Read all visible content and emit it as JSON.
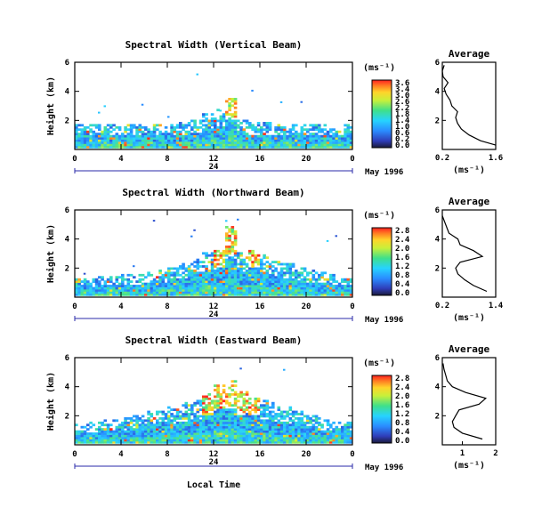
{
  "figure": {
    "xlabel": "Local Time",
    "date_label": "May 1996",
    "midnight_label": "24",
    "units": "(ms⁻¹)",
    "average_title": "Average",
    "average_xlabel": "(ms⁻¹)"
  },
  "chart_data": [
    {
      "type": "heatmap",
      "title": "Spectral Width (Vertical Beam)",
      "xlabel": "Local Time",
      "ylabel": "Height (km)",
      "xlim": [
        0,
        24
      ],
      "xticks": [
        "0",
        "4",
        "8",
        "12",
        "16",
        "20",
        "0"
      ],
      "ylim": [
        0,
        6
      ],
      "yticks": [
        "6",
        "4",
        "2"
      ],
      "colorbar": {
        "label": "(ms⁻¹)",
        "ticks": [
          "3.6",
          "3.4",
          "3.0",
          "2.6",
          "2.2",
          "1.8",
          "1.4",
          "1.0",
          "0.6",
          "0.2",
          "0.0"
        ]
      },
      "layer_top_km": [
        1.6,
        1.6,
        1.7,
        1.6,
        1.6,
        1.7,
        1.7,
        1.6,
        1.7,
        1.8,
        2.0,
        2.4,
        2.7,
        3.5,
        1.9,
        1.8,
        1.8,
        1.7,
        1.7,
        1.6,
        1.6,
        1.6,
        1.6,
        1.6
      ],
      "average": {
        "title": "Average",
        "xlabel": "(ms⁻¹)",
        "xticks": [
          "0.2",
          "1.6"
        ],
        "xlim": [
          0.2,
          1.6
        ],
        "ylim": [
          0,
          6
        ],
        "yticks": [
          "6",
          "4",
          "2"
        ],
        "height_km": [
          0.3,
          0.6,
          1.0,
          1.4,
          1.8,
          2.2,
          2.6,
          3.0,
          3.4,
          3.8,
          4.2,
          4.6,
          5.0,
          5.4,
          5.8
        ],
        "value": [
          1.6,
          1.2,
          0.9,
          0.7,
          0.6,
          0.55,
          0.6,
          0.45,
          0.4,
          0.3,
          0.25,
          0.35,
          0.22,
          0.2,
          0.25
        ]
      }
    },
    {
      "type": "heatmap",
      "title": "Spectral Width (Northward Beam)",
      "xlabel": "Local Time",
      "ylabel": "Height (km)",
      "xlim": [
        0,
        24
      ],
      "xticks": [
        "0",
        "4",
        "8",
        "12",
        "16",
        "20",
        "0"
      ],
      "ylim": [
        0,
        6
      ],
      "yticks": [
        "6",
        "4",
        "2"
      ],
      "colorbar": {
        "label": "(ms⁻¹)",
        "ticks": [
          "2.8",
          "2.4",
          "2.0",
          "1.6",
          "1.2",
          "0.8",
          "0.4",
          "0.0"
        ]
      },
      "layer_top_km": [
        1.2,
        1.2,
        1.4,
        1.4,
        1.5,
        1.5,
        1.6,
        1.8,
        2.0,
        2.2,
        2.6,
        3.0,
        3.3,
        4.8,
        3.0,
        3.2,
        2.8,
        2.4,
        2.2,
        2.0,
        1.8,
        1.6,
        1.5,
        1.4
      ],
      "average": {
        "title": "Average",
        "xlabel": "(ms⁻¹)",
        "xticks": [
          "0.2",
          "1.4"
        ],
        "xlim": [
          0.2,
          1.4
        ],
        "ylim": [
          0,
          6
        ],
        "yticks": [
          "6",
          "4",
          "2"
        ],
        "height_km": [
          0.4,
          0.8,
          1.2,
          1.6,
          2.0,
          2.4,
          2.8,
          3.2,
          3.6,
          4.0,
          4.4,
          4.8,
          5.2,
          5.6
        ],
        "value": [
          1.2,
          0.9,
          0.7,
          0.55,
          0.5,
          0.6,
          1.1,
          0.9,
          0.6,
          0.55,
          0.35,
          0.3,
          0.25,
          0.2
        ]
      }
    },
    {
      "type": "heatmap",
      "title": "Spectral Width (Eastward Beam)",
      "xlabel": "Local Time",
      "ylabel": "Height (km)",
      "xlim": [
        0,
        24
      ],
      "xticks": [
        "0",
        "4",
        "8",
        "12",
        "16",
        "20",
        "0"
      ],
      "ylim": [
        0,
        6
      ],
      "yticks": [
        "6",
        "4",
        "2"
      ],
      "colorbar": {
        "label": "(ms⁻¹)",
        "ticks": [
          "2.8",
          "2.4",
          "2.0",
          "1.6",
          "1.2",
          "0.8",
          "0.4",
          "0.0"
        ]
      },
      "layer_top_km": [
        1.4,
        1.5,
        1.6,
        1.7,
        1.8,
        2.0,
        2.2,
        2.4,
        2.6,
        2.8,
        3.0,
        3.4,
        4.0,
        4.4,
        3.6,
        3.2,
        3.0,
        2.8,
        2.6,
        2.2,
        2.0,
        1.8,
        1.6,
        1.5
      ],
      "average": {
        "title": "Average",
        "xlabel": "(ms⁻¹)",
        "xticks": [
          "1",
          "2"
        ],
        "xlim": [
          0.4,
          2.0
        ],
        "ylim": [
          0,
          6
        ],
        "yticks": [
          "6",
          "4",
          "2"
        ],
        "height_km": [
          0.4,
          0.8,
          1.2,
          1.6,
          2.0,
          2.4,
          2.8,
          3.2,
          3.6,
          4.0,
          4.4,
          4.8,
          5.2,
          5.6
        ],
        "value": [
          1.6,
          1.0,
          0.75,
          0.7,
          0.8,
          0.9,
          1.5,
          1.7,
          1.1,
          0.7,
          0.55,
          0.5,
          0.45,
          0.42
        ]
      }
    }
  ]
}
